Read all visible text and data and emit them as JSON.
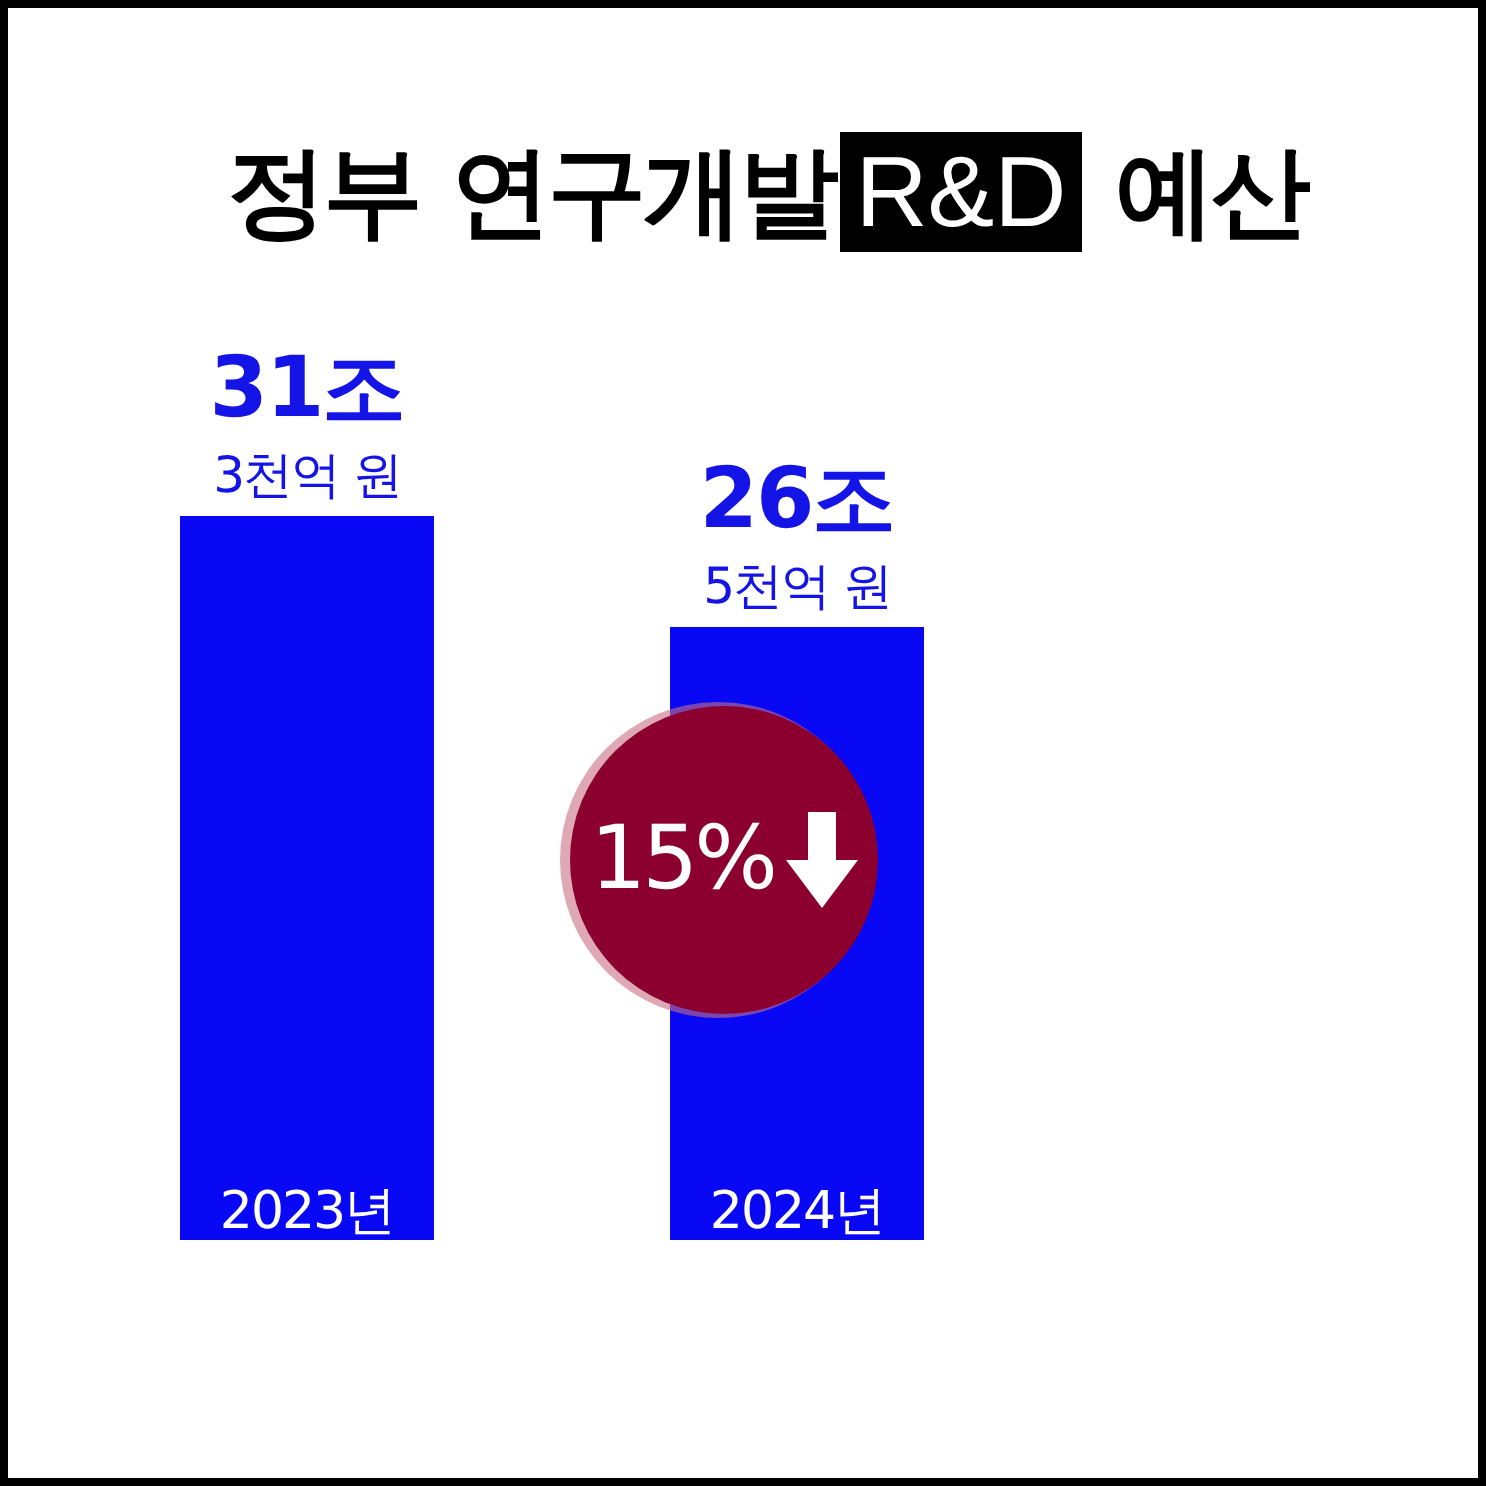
{
  "chart_data": {
    "type": "bar",
    "title": "정부 연구개발 R&D 예산",
    "categories": [
      "2023년",
      "2024년"
    ],
    "values": [
      31.3,
      26.5
    ],
    "value_labels": [
      "31조\n3천억 원",
      "26조\n5천억 원"
    ],
    "color": "#0808f5",
    "annotations": [
      "15%"
    ]
  }
}
